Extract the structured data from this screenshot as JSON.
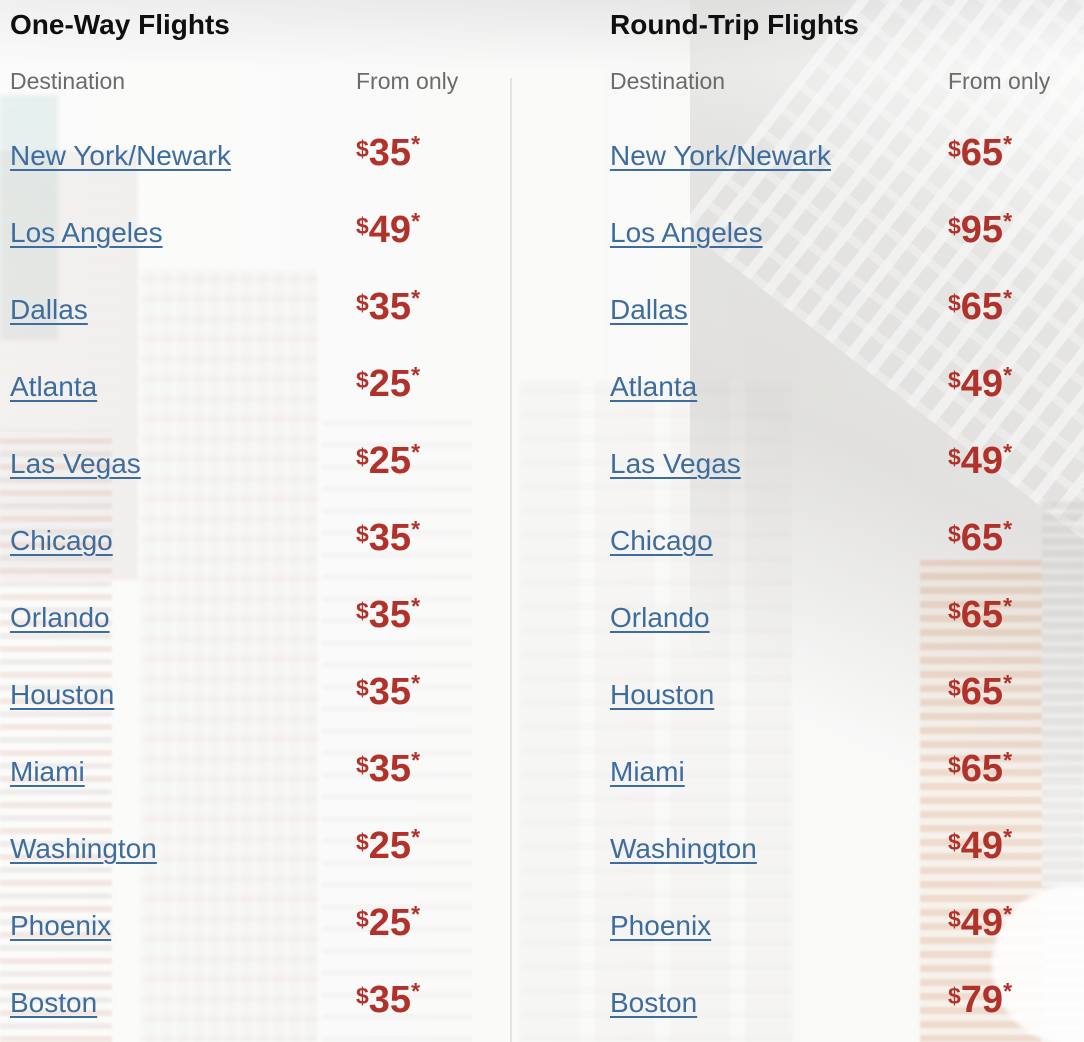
{
  "tables": [
    {
      "title": "One-Way Flights",
      "destination_header": "Destination",
      "price_header": "From only",
      "rows": [
        {
          "destination": "New York/Newark",
          "price": "35"
        },
        {
          "destination": "Los Angeles",
          "price": "49"
        },
        {
          "destination": "Dallas",
          "price": "35"
        },
        {
          "destination": "Atlanta",
          "price": "25"
        },
        {
          "destination": "Las Vegas",
          "price": "25"
        },
        {
          "destination": "Chicago",
          "price": "35"
        },
        {
          "destination": "Orlando",
          "price": "35"
        },
        {
          "destination": "Houston",
          "price": "35"
        },
        {
          "destination": "Miami",
          "price": "35"
        },
        {
          "destination": "Washington",
          "price": "25"
        },
        {
          "destination": "Phoenix",
          "price": "25"
        },
        {
          "destination": "Boston",
          "price": "35"
        }
      ]
    },
    {
      "title": "Round-Trip Flights",
      "destination_header": "Destination",
      "price_header": "From only",
      "rows": [
        {
          "destination": "New York/Newark",
          "price": "65"
        },
        {
          "destination": "Los Angeles",
          "price": "95"
        },
        {
          "destination": "Dallas",
          "price": "65"
        },
        {
          "destination": "Atlanta",
          "price": "49"
        },
        {
          "destination": "Las Vegas",
          "price": "49"
        },
        {
          "destination": "Chicago",
          "price": "65"
        },
        {
          "destination": "Orlando",
          "price": "65"
        },
        {
          "destination": "Houston",
          "price": "65"
        },
        {
          "destination": "Miami",
          "price": "65"
        },
        {
          "destination": "Washington",
          "price": "49"
        },
        {
          "destination": "Phoenix",
          "price": "49"
        },
        {
          "destination": "Boston",
          "price": "79"
        }
      ]
    }
  ],
  "price": {
    "currency": "$",
    "asterisk": "*"
  },
  "colors": {
    "link_blue": "#3d6d9f",
    "price_red": "#b1322a",
    "header_gray": "#6b6b6b",
    "title_black": "#0f0f0f",
    "divider_gray": "#e4e4e5"
  }
}
